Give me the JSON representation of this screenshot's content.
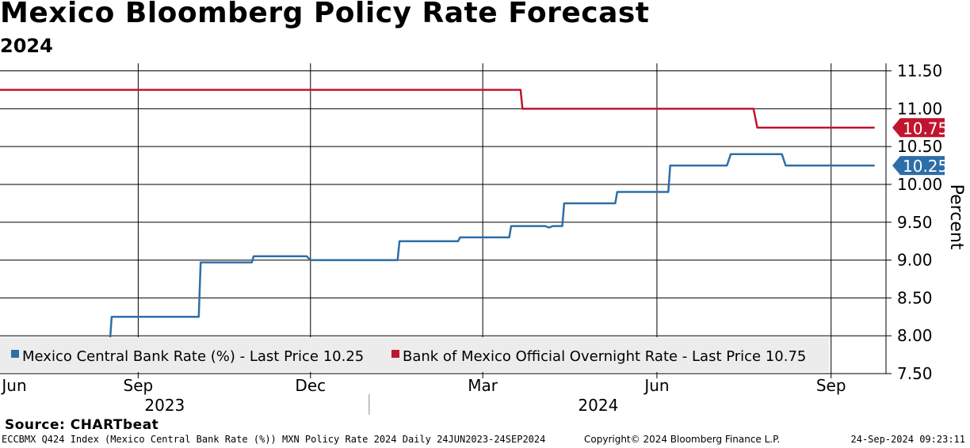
{
  "header": {
    "title": "Mexico Bloomberg Policy Rate Forecast",
    "subtitle": "2024"
  },
  "source": "Source: CHARTbeat",
  "footer": {
    "left": "ECCBMX Q424 Index (Mexico Central Bank Rate (%)) MXN Policy Rate 2024  Daily 24JUN2023-24SEP2024",
    "center": "Copyright© 2024 Bloomberg Finance L.P.",
    "right": "24-Sep-2024 09:23:11"
  },
  "chart_data": {
    "type": "line",
    "title": "Mexico Bloomberg Policy Rate Forecast",
    "subtitle": "2024",
    "ylabel": "Percent",
    "ylim": [
      7.5,
      11.6
    ],
    "yticks": [
      7.5,
      8.0,
      8.5,
      9.0,
      9.5,
      10.0,
      10.5,
      11.0,
      11.5
    ],
    "ytick_labels": [
      "7.50",
      "8.00",
      "8.50",
      "9.00",
      "9.50",
      "10.00",
      "10.50",
      "11.00",
      "11.50"
    ],
    "xlim": [
      "2023-06-20",
      "2024-09-30"
    ],
    "xticks": [
      {
        "date": "2023-06-01",
        "label": "Jun"
      },
      {
        "date": "2023-09-01",
        "label": "Sep"
      },
      {
        "date": "2023-12-01",
        "label": "Dec"
      },
      {
        "date": "2024-03-01",
        "label": "Mar"
      },
      {
        "date": "2024-06-01",
        "label": "Jun"
      },
      {
        "date": "2024-09-01",
        "label": "Sep"
      }
    ],
    "year_labels": [
      {
        "label": "2023",
        "date": "2023-09-15"
      },
      {
        "label": "2024",
        "date": "2024-05-01"
      }
    ],
    "year_separator": "2024-01-01",
    "grid": true,
    "legend_position": "bottom-left",
    "series": [
      {
        "name": "Mexico Central Bank Rate (%) - Last Price 10.25",
        "color": "#2e6ea8",
        "last_label": "10.25",
        "points": [
          [
            "2023-06-20",
            7.8
          ],
          [
            "2023-07-19",
            7.8
          ],
          [
            "2023-07-20",
            7.9
          ],
          [
            "2023-08-17",
            7.9
          ],
          [
            "2023-08-18",
            8.25
          ],
          [
            "2023-10-03",
            8.25
          ],
          [
            "2023-10-04",
            8.97
          ],
          [
            "2023-10-31",
            8.97
          ],
          [
            "2023-11-01",
            9.05
          ],
          [
            "2023-11-29",
            9.05
          ],
          [
            "2023-12-01",
            9.0
          ],
          [
            "2024-01-16",
            9.0
          ],
          [
            "2024-01-17",
            9.25
          ],
          [
            "2024-02-17",
            9.25
          ],
          [
            "2024-02-18",
            9.3
          ],
          [
            "2024-03-15",
            9.3
          ],
          [
            "2024-03-16",
            9.45
          ],
          [
            "2024-04-03",
            9.45
          ],
          [
            "2024-04-05",
            9.43
          ],
          [
            "2024-04-07",
            9.45
          ],
          [
            "2024-04-12",
            9.45
          ],
          [
            "2024-04-13",
            9.75
          ],
          [
            "2024-05-10",
            9.75
          ],
          [
            "2024-05-11",
            9.9
          ],
          [
            "2024-06-07",
            9.9
          ],
          [
            "2024-06-08",
            10.25
          ],
          [
            "2024-07-08",
            10.25
          ],
          [
            "2024-07-10",
            10.4
          ],
          [
            "2024-08-06",
            10.4
          ],
          [
            "2024-08-08",
            10.25
          ],
          [
            "2024-09-24",
            10.25
          ]
        ]
      },
      {
        "name": "Bank of Mexico Official Overnight Rate - Last Price 10.75",
        "color": "#c0152f",
        "last_label": "10.75",
        "points": [
          [
            "2023-06-20",
            11.25
          ],
          [
            "2024-03-21",
            11.25
          ],
          [
            "2024-03-22",
            11.0
          ],
          [
            "2024-07-22",
            11.0
          ],
          [
            "2024-07-24",
            10.75
          ],
          [
            "2024-09-24",
            10.75
          ]
        ]
      }
    ]
  }
}
